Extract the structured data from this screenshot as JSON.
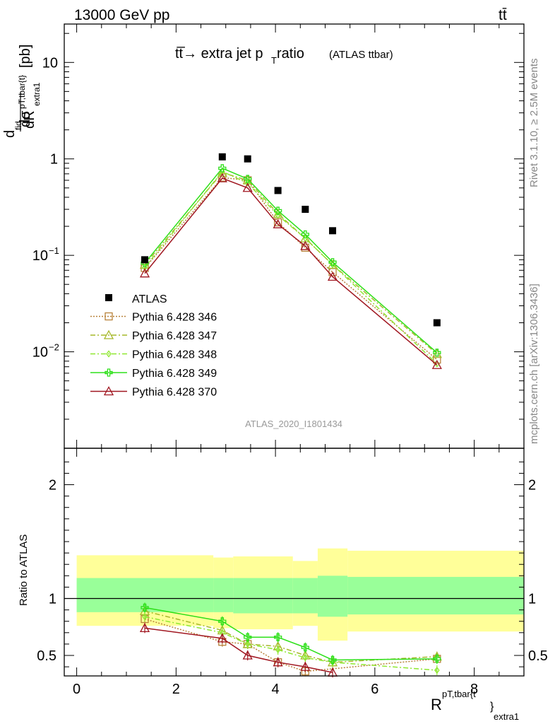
{
  "header": {
    "left": "13000 GeV pp",
    "right": "tt̄"
  },
  "side_text": {
    "rivet": "Rivet 3.1.10, ≥ 2.5M events",
    "mcplots": "mcplots.cern.ch [arXiv:1306.3436]"
  },
  "chart_data": {
    "type": "scatter",
    "title": "tt̅→ extra jet p",
    "title_sub": "T",
    "title_rest": " ratio",
    "title_note": "(ATLAS ttbar)",
    "analysis_label": "ATLAS_2020_I1801434",
    "xlabel": "R",
    "xlabel_sup": "pT,tbar{t",
    "xlabel_brace": "}",
    "xlabel_sub": "extra1",
    "ylabel_main": "[pb]",
    "ylabel_ratio": "Ratio to ATLAS",
    "xlim": [
      -0.25,
      9.0
    ],
    "ylim_main": [
      0.001,
      25
    ],
    "ylim_ratio": [
      0.32,
      2.32
    ],
    "y_scale_main": "log",
    "x_ticks": [
      "0",
      "2",
      "4",
      "6",
      "8"
    ],
    "main_y_ticks": [
      "10",
      "1",
      "10",
      "10"
    ],
    "main_y_tick_exponents": [
      "",
      "",
      "−1",
      "−2"
    ],
    "ratio_y_ticks": [
      "2",
      "1",
      "0.5"
    ],
    "legend_position": "left",
    "bins": [
      {
        "x": 1.37,
        "xlo": 0.0,
        "xhi": 2.75
      },
      {
        "x": 2.93,
        "xlo": 2.75,
        "xhi": 3.15
      },
      {
        "x": 3.44,
        "xlo": 3.15,
        "xhi": 3.75
      },
      {
        "x": 4.05,
        "xlo": 3.75,
        "xhi": 4.35
      },
      {
        "x": 4.6,
        "xlo": 4.35,
        "xhi": 4.85
      },
      {
        "x": 5.15,
        "xlo": 4.85,
        "xhi": 5.45
      },
      {
        "x": 7.25,
        "xlo": 5.45,
        "xhi": 9.0
      }
    ],
    "ratio_band_yellow": [
      [
        0.76,
        1.38
      ],
      [
        0.74,
        1.36
      ],
      [
        0.73,
        1.37
      ],
      [
        0.73,
        1.37
      ],
      [
        0.76,
        1.33
      ],
      [
        0.63,
        1.44
      ],
      [
        0.71,
        1.42
      ]
    ],
    "ratio_band_green": [
      [
        0.88,
        1.18
      ],
      [
        0.88,
        1.18
      ],
      [
        0.87,
        1.18
      ],
      [
        0.87,
        1.18
      ],
      [
        0.87,
        1.18
      ],
      [
        0.84,
        1.2
      ],
      [
        0.86,
        1.19
      ]
    ],
    "data": {
      "name": "ATLAS",
      "color": "#000000",
      "y": [
        0.09,
        1.05,
        1.0,
        0.47,
        0.3,
        0.18,
        0.02
      ]
    },
    "series": [
      {
        "name": "Pythia 6.428 346",
        "color": "#b8823a",
        "dash": "2,2",
        "marker": "square",
        "y": [
          0.074,
          0.64,
          0.6,
          0.22,
          0.12,
          0.067,
          0.0083
        ],
        "ratio": [
          0.82,
          0.62,
          0.6,
          0.44,
          0.36,
          null,
          0.47
        ]
      },
      {
        "name": "Pythia 6.428 347",
        "color": "#a6b82a",
        "dash": "7,3,2,3",
        "marker": "triangle",
        "y": [
          0.08,
          0.72,
          0.6,
          0.27,
          0.15,
          0.08,
          0.0095
        ],
        "ratio": [
          0.89,
          0.72,
          0.6,
          0.58,
          0.5,
          0.44,
          0.49
        ]
      },
      {
        "name": "Pythia 6.428 348",
        "color": "#8fe830",
        "dash": "7,3,2,3",
        "marker": "diamond",
        "y": [
          0.075,
          0.74,
          0.56,
          0.26,
          0.15,
          0.08,
          0.0075
        ],
        "ratio": [
          0.84,
          0.7,
          0.6,
          0.55,
          0.48,
          0.44,
          0.37
        ]
      },
      {
        "name": "Pythia 6.428 349",
        "color": "#2ee01a",
        "dash": "",
        "marker": "cross",
        "y": [
          0.083,
          0.8,
          0.62,
          0.29,
          0.165,
          0.085,
          0.0098
        ],
        "ratio": [
          0.92,
          0.8,
          0.66,
          0.66,
          0.57,
          0.46,
          0.47
        ]
      },
      {
        "name": "Pythia 6.428 370",
        "color": "#a01620",
        "dash": "",
        "marker": "triangle",
        "y": [
          0.065,
          0.63,
          0.5,
          0.21,
          0.125,
          0.06,
          0.0073
        ],
        "ratio": [
          0.74,
          0.65,
          0.5,
          0.44,
          0.4,
          0.35,
          null
        ]
      }
    ]
  }
}
